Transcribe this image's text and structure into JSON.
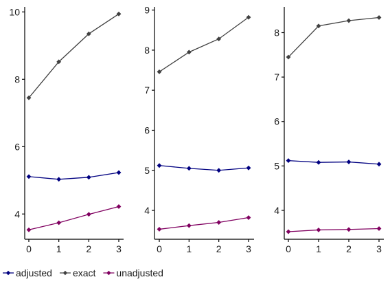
{
  "chart_data": [
    {
      "type": "line",
      "x": [
        0,
        1,
        2,
        3
      ],
      "ylim": [
        3.25,
        10.15
      ],
      "yticks": [
        4,
        6,
        8,
        10
      ],
      "grid": false,
      "series": [
        {
          "name": "adjusted",
          "color": "#000080",
          "values": [
            5.11,
            5.03,
            5.09,
            5.23
          ]
        },
        {
          "name": "exact",
          "color": "#404040",
          "values": [
            7.45,
            8.52,
            9.35,
            9.94
          ]
        },
        {
          "name": "unadjusted",
          "color": "#800060",
          "values": [
            3.53,
            3.74,
            3.99,
            4.22
          ]
        }
      ]
    },
    {
      "type": "line",
      "x": [
        0,
        1,
        2,
        3
      ],
      "ylim": [
        3.28,
        9.08
      ],
      "yticks": [
        4,
        5,
        6,
        7,
        8,
        9
      ],
      "grid": false,
      "series": [
        {
          "name": "adjusted",
          "color": "#000080",
          "values": [
            5.12,
            5.05,
            5.0,
            5.06
          ]
        },
        {
          "name": "exact",
          "color": "#404040",
          "values": [
            7.46,
            7.95,
            8.28,
            8.82
          ]
        },
        {
          "name": "unadjusted",
          "color": "#800060",
          "values": [
            3.53,
            3.62,
            3.7,
            3.82
          ]
        }
      ]
    },
    {
      "type": "line",
      "x": [
        0,
        1,
        2,
        3
      ],
      "ylim": [
        3.35,
        8.58
      ],
      "yticks": [
        4,
        5,
        6,
        7,
        8
      ],
      "grid": false,
      "series": [
        {
          "name": "adjusted",
          "color": "#000080",
          "values": [
            5.12,
            5.08,
            5.09,
            5.04
          ]
        },
        {
          "name": "exact",
          "color": "#404040",
          "values": [
            7.45,
            8.15,
            8.27,
            8.34
          ]
        },
        {
          "name": "unadjusted",
          "color": "#800060",
          "values": [
            3.52,
            3.56,
            3.57,
            3.59
          ]
        }
      ]
    }
  ],
  "legend": {
    "position": "bottom-left",
    "items": [
      {
        "label": "adjusted",
        "color": "#000080"
      },
      {
        "label": "exact",
        "color": "#404040"
      },
      {
        "label": "unadjusted",
        "color": "#800060"
      }
    ]
  }
}
